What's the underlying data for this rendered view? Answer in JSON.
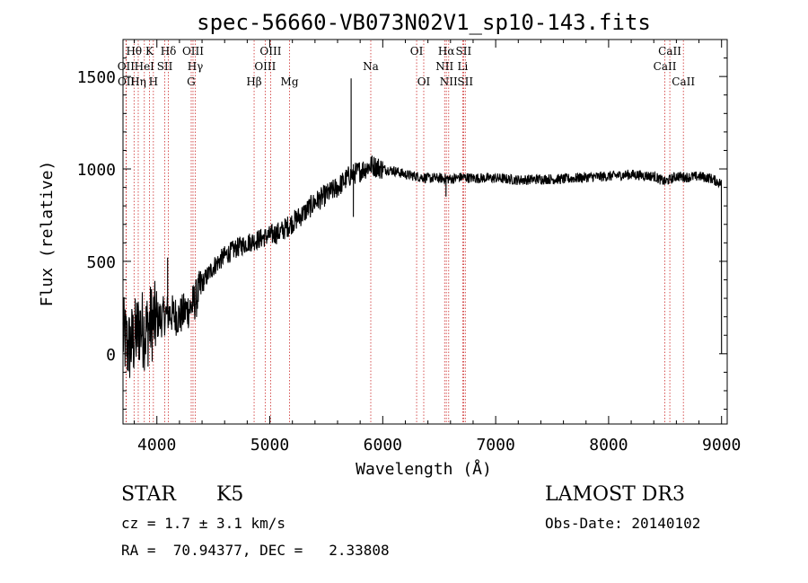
{
  "chart_data": {
    "type": "line",
    "title": "spec-56660-VB073N02V1_sp10-143.fits",
    "xlabel": "Wavelength (Å)",
    "ylabel": "Flux (relative)",
    "xlim": [
      3700,
      9050
    ],
    "ylim": [
      -380,
      1700
    ],
    "xticks": [
      4000,
      5000,
      6000,
      7000,
      8000,
      9000
    ],
    "yticks": [
      0,
      500,
      1000,
      1500
    ],
    "series": [
      {
        "name": "flux",
        "x": [
          3700,
          3750,
          3800,
          3850,
          3900,
          3950,
          4000,
          4050,
          4100,
          4150,
          4200,
          4250,
          4300,
          4350,
          4400,
          4500,
          4600,
          4700,
          4800,
          4900,
          5000,
          5100,
          5200,
          5300,
          5400,
          5500,
          5600,
          5700,
          5800,
          5900,
          6000,
          6100,
          6200,
          6300,
          6400,
          6500,
          6600,
          6700,
          6800,
          7000,
          7200,
          7400,
          7600,
          7800,
          8000,
          8200,
          8400,
          8500,
          8600,
          8700,
          8800,
          8900,
          9000
        ],
        "y": [
          100,
          30,
          80,
          150,
          120,
          170,
          180,
          200,
          220,
          210,
          200,
          230,
          250,
          300,
          380,
          470,
          530,
          570,
          600,
          620,
          640,
          660,
          710,
          760,
          820,
          860,
          900,
          960,
          990,
          1020,
          1000,
          990,
          970,
          960,
          950,
          950,
          945,
          955,
          950,
          950,
          940,
          945,
          945,
          955,
          960,
          970,
          960,
          930,
          960,
          955,
          960,
          950,
          920
        ]
      }
    ],
    "spikes": [
      {
        "x": 5720,
        "y": 1490
      },
      {
        "x": 4095,
        "y": 520
      },
      {
        "x": 6560,
        "y": 850
      },
      {
        "x": 5740,
        "y": 740
      }
    ],
    "end_drop": {
      "x": 9000,
      "y": 0
    },
    "lines": [
      {
        "label": "Hθ",
        "x": 3798,
        "row": 1,
        "color": "#cc2a2a"
      },
      {
        "label": "OII",
        "x": 3727,
        "row": 2,
        "color": "#cc2a2a"
      },
      {
        "label": "OII",
        "x": 3729,
        "row": 3,
        "color": "#cc2a2a"
      },
      {
        "label": "K",
        "x": 3934,
        "row": 1,
        "color": "#cc2a2a"
      },
      {
        "label": "Hη",
        "x": 3835,
        "row": 3,
        "color": "#cc2a2a"
      },
      {
        "label": "HeI",
        "x": 3889,
        "row": 2,
        "color": "#cc2a2a"
      },
      {
        "label": "H",
        "x": 3969,
        "row": 3,
        "color": "#cc2a2a"
      },
      {
        "label": "SII",
        "x": 4070,
        "row": 2,
        "color": "#cc2a2a"
      },
      {
        "label": "Hδ",
        "x": 4102,
        "row": 1,
        "color": "#cc2a2a"
      },
      {
        "label": "OIII",
        "x": 4320,
        "row": 1,
        "color": "#cc2a2a"
      },
      {
        "label": "Hγ",
        "x": 4340,
        "row": 2,
        "color": "#cc2a2a"
      },
      {
        "label": "G",
        "x": 4304,
        "row": 3,
        "color": "#cc2a2a"
      },
      {
        "label": "Hβ",
        "x": 4861,
        "row": 3,
        "color": "#cc2a2a"
      },
      {
        "label": "OIII",
        "x": 5007,
        "row": 1,
        "color": "#cc2a2a"
      },
      {
        "label": "OIII",
        "x": 4959,
        "row": 2,
        "color": "#cc2a2a"
      },
      {
        "label": "Mg",
        "x": 5175,
        "row": 3,
        "color": "#cc2a2a"
      },
      {
        "label": "Na",
        "x": 5894,
        "row": 2,
        "color": "#cc2a2a"
      },
      {
        "label": "OI",
        "x": 6300,
        "row": 1,
        "color": "#cc2a2a"
      },
      {
        "label": "OI",
        "x": 6363,
        "row": 3,
        "color": "#cc2a2a"
      },
      {
        "label": "Hα",
        "x": 6563,
        "row": 1,
        "color": "#cc2a2a"
      },
      {
        "label": "NII",
        "x": 6548,
        "row": 2,
        "color": "#cc2a2a"
      },
      {
        "label": "NII",
        "x": 6584,
        "row": 3,
        "color": "#cc2a2a"
      },
      {
        "label": "SII",
        "x": 6716,
        "row": 1,
        "color": "#cc2a2a"
      },
      {
        "label": "Li",
        "x": 6708,
        "row": 2,
        "color": "#cc2a2a"
      },
      {
        "label": "SII",
        "x": 6731,
        "row": 3,
        "color": "#cc2a2a"
      },
      {
        "label": "CaII",
        "x": 8542,
        "row": 1,
        "color": "#cc2a2a"
      },
      {
        "label": "CaII",
        "x": 8498,
        "row": 2,
        "color": "#cc2a2a"
      },
      {
        "label": "CaII",
        "x": 8662,
        "row": 3,
        "color": "#cc2a2a"
      }
    ]
  },
  "info": {
    "class": "STAR",
    "subclass": "K5",
    "survey": "LAMOST DR3",
    "cz": "cz = 1.7 ± 3.1 km/s",
    "obs_date": "Obs-Date: 20140102",
    "radec": "RA =  70.94377, DEC =   2.33808"
  }
}
